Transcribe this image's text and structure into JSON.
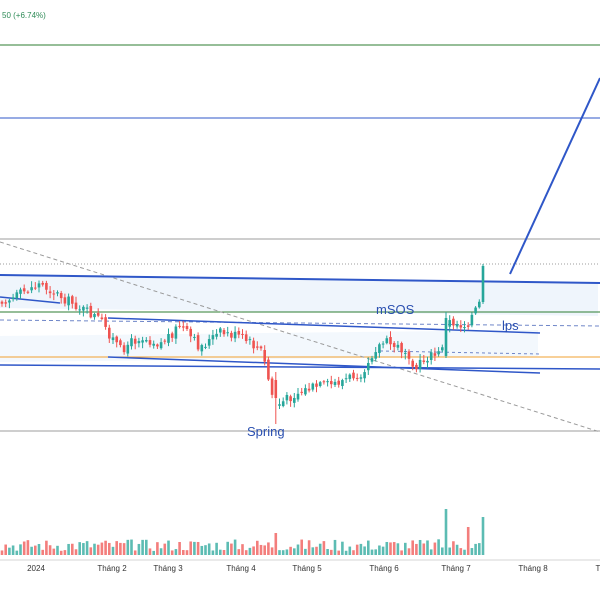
{
  "header": {
    "change_text": "50 (+6.74%)"
  },
  "chart_data": {
    "type": "candlestick",
    "x_tick_labels": [
      "2024",
      "Tháng 2",
      "Tháng 3",
      "Tháng 4",
      "Tháng 5",
      "Tháng 6",
      "Tháng 7",
      "Tháng 8",
      "T"
    ],
    "annotations": [
      "mSOS",
      "lps",
      "Spring"
    ],
    "colors": {
      "up": "#26a69a",
      "down": "#ef5350",
      "trend_line": "#2f57c8",
      "green_level": "#2e7d32",
      "gray_level": "#9e9e9e",
      "orange_level": "#f0a030",
      "annotation": "#2a4fb0",
      "channel_fill": "#e8f1fb",
      "change_text": "#2e8b57"
    }
  }
}
